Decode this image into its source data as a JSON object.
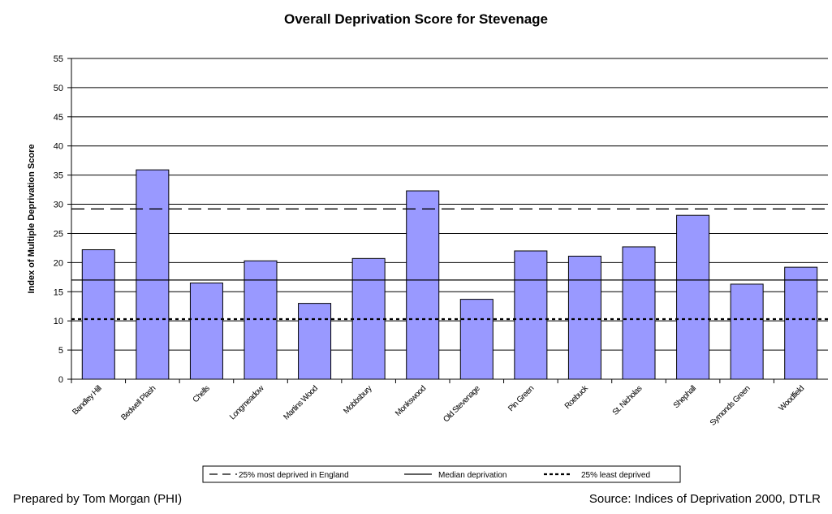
{
  "chart_data": {
    "type": "bar",
    "title": "Overall Deprivation Score for Stevenage",
    "xlabel": "",
    "ylabel": "Index of Multiple Deprivation Score",
    "ylim": [
      0,
      55
    ],
    "yticks": [
      0,
      5,
      10,
      15,
      20,
      25,
      30,
      35,
      40,
      45,
      50,
      55
    ],
    "grid": true,
    "categories": [
      "Bandley Hill",
      "Bedwell Plash",
      "Chells",
      "Longmeadow",
      "Martins Wood",
      "Mobbsbury",
      "Monkswood",
      "Old Stevenage",
      "Pin Green",
      "Roebuck",
      "St. Nicholas",
      "Shephall",
      "Symonds Green",
      "Woodfield"
    ],
    "values": [
      22.2,
      35.9,
      16.5,
      20.3,
      13,
      20.7,
      32.3,
      13.7,
      22,
      21.1,
      22.7,
      28.1,
      16.3,
      19.2
    ],
    "reference_lines": [
      {
        "name": "25% most deprived in England",
        "value": 29.2,
        "style": "dashed"
      },
      {
        "name": "Median deprivation",
        "value": 17,
        "style": "solid"
      },
      {
        "name": "25% least deprived",
        "value": 10.3,
        "style": "dotted"
      }
    ],
    "legend_position": "bottom",
    "bar_color": "#9999ff"
  },
  "footer": {
    "prepared_by": "Prepared by Tom Morgan (PHI)",
    "source": "Source:  Indices of Deprivation 2000, DTLR"
  }
}
